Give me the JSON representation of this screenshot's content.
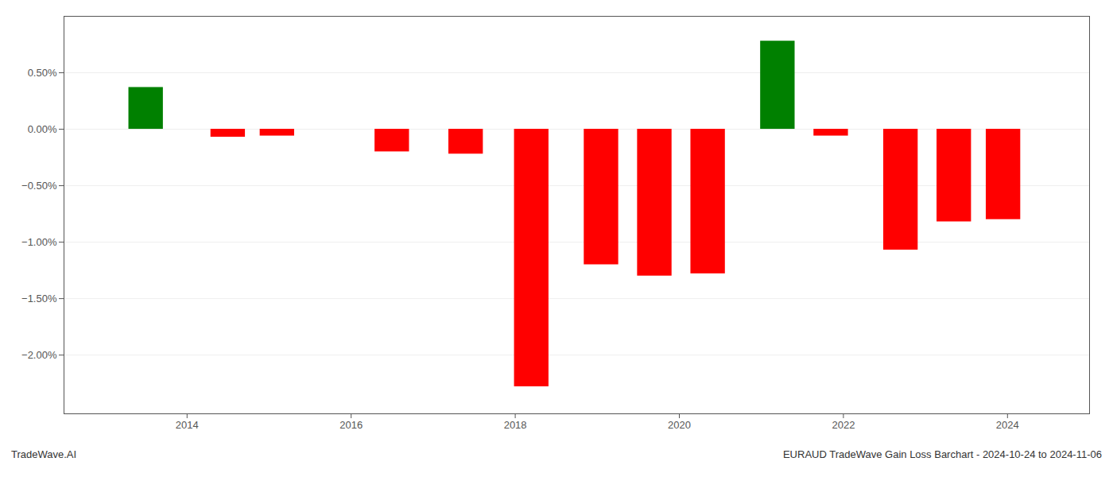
{
  "chart_data": {
    "type": "bar",
    "x": [
      2013.5,
      2014.5,
      2015.1,
      2016.5,
      2017.4,
      2018.2,
      2019.05,
      2019.7,
      2020.35,
      2021.2,
      2021.85,
      2022.7,
      2023.35,
      2023.95
    ],
    "values": [
      0.37,
      -0.07,
      -0.06,
      -0.2,
      -0.22,
      -2.28,
      -1.2,
      -1.3,
      -1.28,
      0.78,
      -0.06,
      -1.07,
      -0.82,
      -0.8
    ],
    "colors": [
      "#008000",
      "#ff0000",
      "#ff0000",
      "#ff0000",
      "#ff0000",
      "#ff0000",
      "#ff0000",
      "#ff0000",
      "#ff0000",
      "#008000",
      "#ff0000",
      "#ff0000",
      "#ff0000",
      "#ff0000"
    ],
    "xlim": [
      2012.5,
      2025.0
    ],
    "xticks": [
      2014,
      2016,
      2018,
      2020,
      2022,
      2024
    ],
    "ylim": [
      -2.52,
      1.0
    ],
    "yticks": [
      {
        "value": 0.5,
        "label": "0.50%"
      },
      {
        "value": 0.0,
        "label": "0.00%"
      },
      {
        "value": -0.5,
        "label": "−0.50%"
      },
      {
        "value": -1.0,
        "label": "−1.00%"
      },
      {
        "value": -1.5,
        "label": "−1.50%"
      },
      {
        "value": -2.0,
        "label": "−2.00%"
      }
    ],
    "grid": true,
    "annotations": [
      "TradeWave.AI",
      "EURAUD TradeWave Gain Loss Barchart - 2024-10-24 to 2024-11-06"
    ]
  }
}
